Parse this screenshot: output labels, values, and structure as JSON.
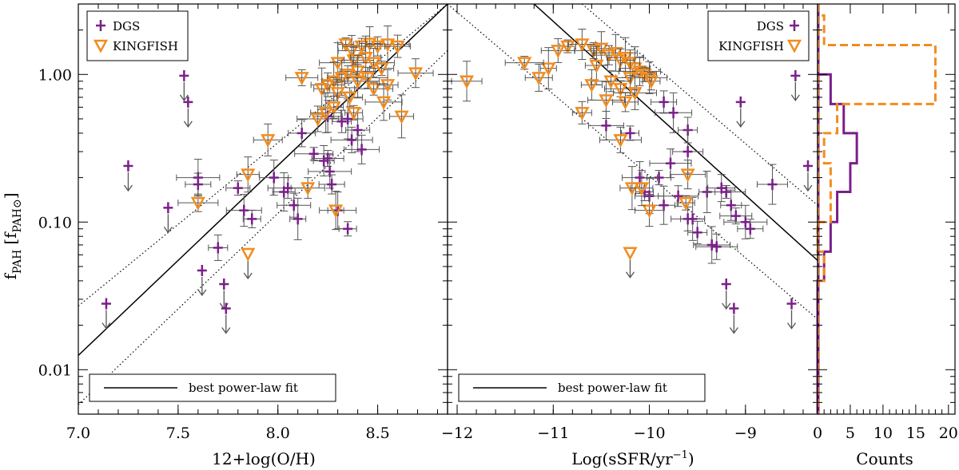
{
  "colors": {
    "dgs": "#7a1f8a",
    "kingfish": "#f28c1e",
    "errorbar": "#555555",
    "fit": "#000000"
  },
  "chart_data": [
    {
      "type": "scatter",
      "panel": "left",
      "xlabel": "12+log(O/H)",
      "ylabel": "f_PAH [f_PAH⊙]",
      "ylabel_main": "f",
      "ylabel_sub": "PAH",
      "ylabel_bracket_open": "[f",
      "ylabel_bracket_sub": "PAH⊙",
      "ylabel_bracket_close": "]",
      "xlim": [
        7.0,
        8.85
      ],
      "ylim": [
        0.005,
        3.0
      ],
      "yscale": "log",
      "xticks": [
        "7.0",
        "7.5",
        "8.0",
        "8.5"
      ],
      "yticks": [
        "0.01",
        "0.10",
        "1.00"
      ],
      "legend": {
        "position": "top-left",
        "entries": [
          "DGS",
          "KINGFISH"
        ]
      },
      "fit_label": "best power-law fit",
      "fit_line": {
        "x": [
          7.0,
          8.85
        ],
        "y": [
          0.0125,
          3.0
        ]
      },
      "fit_scatter_lines": [
        {
          "x": [
            7.0,
            8.85
          ],
          "y": [
            0.027,
            3.0
          ]
        },
        {
          "x": [
            7.0,
            8.85
          ],
          "y": [
            0.0058,
            1.45
          ]
        }
      ],
      "series": [
        {
          "name": "DGS",
          "marker": "plus",
          "points": [
            [
              7.53,
              0.98
            ],
            [
              7.55,
              0.65
            ],
            [
              7.25,
              0.24
            ],
            [
              7.14,
              0.028
            ],
            [
              7.45,
              0.125
            ],
            [
              7.6,
              0.2
            ],
            [
              7.6,
              0.18
            ],
            [
              7.62,
              0.047
            ],
            [
              7.7,
              0.067
            ],
            [
              7.73,
              0.038
            ],
            [
              7.74,
              0.026
            ],
            [
              7.8,
              0.17
            ],
            [
              7.83,
              0.12
            ],
            [
              7.87,
              0.105
            ],
            [
              7.98,
              0.2
            ],
            [
              8.05,
              0.17
            ],
            [
              8.03,
              0.16
            ],
            [
              8.08,
              0.13
            ],
            [
              8.1,
              0.105
            ],
            [
              8.12,
              0.4
            ],
            [
              8.18,
              0.29
            ],
            [
              8.23,
              0.26
            ],
            [
              8.25,
              0.27
            ],
            [
              8.26,
              0.22
            ],
            [
              8.27,
              0.18
            ],
            [
              8.3,
              0.12
            ],
            [
              8.32,
              0.48
            ],
            [
              8.35,
              0.5
            ],
            [
              8.37,
              0.36
            ],
            [
              8.4,
              0.42
            ],
            [
              8.42,
              0.31
            ],
            [
              8.35,
              0.09
            ],
            [
              8.25,
              0.52
            ]
          ],
          "upper_limit_indices": [
            0,
            1,
            2,
            3,
            4,
            7,
            9,
            10
          ]
        },
        {
          "name": "KINGFISH",
          "marker": "down-triangle",
          "points": [
            [
              8.34,
              1.6
            ],
            [
              8.37,
              1.45
            ],
            [
              8.42,
              1.55
            ],
            [
              8.46,
              1.62
            ],
            [
              8.5,
              1.55
            ],
            [
              8.55,
              1.6
            ],
            [
              8.6,
              1.55
            ],
            [
              8.3,
              1.2
            ],
            [
              8.38,
              1.25
            ],
            [
              8.44,
              1.3
            ],
            [
              8.48,
              1.2
            ],
            [
              8.52,
              1.1
            ],
            [
              8.4,
              1.05
            ],
            [
              8.35,
              1.0
            ],
            [
              8.32,
              0.95
            ],
            [
              8.45,
              0.95
            ],
            [
              8.28,
              0.9
            ],
            [
              8.25,
              0.85
            ],
            [
              8.22,
              0.8
            ],
            [
              8.3,
              0.75
            ],
            [
              8.48,
              0.8
            ],
            [
              8.55,
              0.85
            ],
            [
              8.12,
              0.95
            ],
            [
              8.4,
              0.9
            ],
            [
              8.36,
              0.7
            ],
            [
              8.53,
              0.65
            ],
            [
              8.28,
              0.6
            ],
            [
              8.24,
              0.55
            ],
            [
              8.2,
              0.5
            ],
            [
              8.62,
              0.52
            ],
            [
              8.69,
              1.02
            ],
            [
              8.38,
              0.55
            ],
            [
              7.95,
              0.36
            ],
            [
              7.6,
              0.135
            ],
            [
              7.85,
              0.21
            ],
            [
              8.15,
              0.17
            ],
            [
              8.29,
              0.12
            ],
            [
              7.85,
              0.061
            ]
          ],
          "upper_limit_indices": [
            37
          ]
        }
      ]
    },
    {
      "type": "scatter",
      "panel": "middle",
      "xlabel": "Log(sSFR/yr⁻¹)",
      "xlabel_main": "Log(sSFR/yr",
      "xlabel_sup": "−1",
      "xlabel_close": ")",
      "xlim": [
        -12.1,
        -8.25
      ],
      "ylim": [
        0.005,
        3.0
      ],
      "yscale": "log",
      "xticks": [
        "−12",
        "−11",
        "−10",
        "−9"
      ],
      "legend": {
        "position": "top-right",
        "entries": [
          "DGS",
          "KINGFISH"
        ]
      },
      "fit_label": "best power-law fit",
      "fit_line": {
        "x": [
          -11.2,
          -8.25
        ],
        "y": [
          3.0,
          0.055
        ]
      },
      "fit_scatter_lines": [
        {
          "x": [
            -10.7,
            -8.25
          ],
          "y": [
            3.0,
            0.13
          ]
        },
        {
          "x": [
            -12.1,
            -8.25
          ],
          "y": [
            3.0,
            0.022
          ]
        }
      ],
      "series": [
        {
          "name": "DGS",
          "marker": "plus",
          "points": [
            [
              -8.48,
              0.98
            ],
            [
              -9.05,
              0.65
            ],
            [
              -8.35,
              0.24
            ],
            [
              -9.2,
              0.038
            ],
            [
              -9.12,
              0.026
            ],
            [
              -8.52,
              0.028
            ],
            [
              -9.85,
              0.65
            ],
            [
              -9.75,
              0.55
            ],
            [
              -9.6,
              0.42
            ],
            [
              -9.6,
              0.3
            ],
            [
              -9.78,
              0.25
            ],
            [
              -9.9,
              0.2
            ],
            [
              -10.1,
              0.2
            ],
            [
              -10.05,
              0.16
            ],
            [
              -10.0,
              0.15
            ],
            [
              -9.7,
              0.15
            ],
            [
              -9.85,
              0.13
            ],
            [
              -9.6,
              0.105
            ],
            [
              -9.4,
              0.16
            ],
            [
              -9.25,
              0.17
            ],
            [
              -9.2,
              0.16
            ],
            [
              -9.15,
              0.13
            ],
            [
              -9.1,
              0.11
            ],
            [
              -9.0,
              0.1
            ],
            [
              -8.95,
              0.09
            ],
            [
              -9.35,
              0.07
            ],
            [
              -9.5,
              0.085
            ],
            [
              -8.72,
              0.18
            ],
            [
              -9.3,
              0.068
            ],
            [
              -9.55,
              0.105
            ],
            [
              -10.45,
              0.45
            ],
            [
              -10.2,
              0.4
            ]
          ],
          "upper_limit_indices": [
            0,
            1,
            2,
            3,
            4,
            5
          ]
        },
        {
          "name": "KINGFISH",
          "marker": "down-triangle",
          "points": [
            [
              -10.85,
              1.55
            ],
            [
              -10.7,
              1.6
            ],
            [
              -10.58,
              1.45
            ],
            [
              -10.5,
              1.5
            ],
            [
              -10.42,
              1.35
            ],
            [
              -10.35,
              1.4
            ],
            [
              -10.3,
              1.25
            ],
            [
              -10.25,
              1.3
            ],
            [
              -10.2,
              1.2
            ],
            [
              -10.15,
              1.1
            ],
            [
              -10.1,
              1.05
            ],
            [
              -10.05,
              1.0
            ],
            [
              -10.0,
              0.95
            ],
            [
              -9.98,
              0.9
            ],
            [
              -10.2,
              0.95
            ],
            [
              -10.4,
              0.9
            ],
            [
              -10.55,
              1.15
            ],
            [
              -10.95,
              1.45
            ],
            [
              -11.05,
              1.1
            ],
            [
              -11.15,
              0.95
            ],
            [
              -11.3,
              1.2
            ],
            [
              -10.6,
              0.85
            ],
            [
              -10.3,
              0.8
            ],
            [
              -10.15,
              0.75
            ],
            [
              -10.25,
              0.65
            ],
            [
              -10.45,
              0.67
            ],
            [
              -10.7,
              0.55
            ],
            [
              -11.9,
              0.9
            ],
            [
              -10.3,
              0.36
            ],
            [
              -10.18,
              0.17
            ],
            [
              -9.6,
              0.21
            ],
            [
              -9.62,
              0.135
            ],
            [
              -10.0,
              0.12
            ],
            [
              -10.2,
              0.062
            ],
            [
              -10.08,
              0.17
            ]
          ],
          "upper_limit_indices": [
            33
          ]
        }
      ]
    },
    {
      "type": "histogram",
      "panel": "right",
      "xlabel": "Counts",
      "xlim": [
        0,
        21
      ],
      "xticks": [
        "0",
        "5",
        "10",
        "15",
        "20"
      ],
      "orientation": "horizontal",
      "series": [
        {
          "name": "DGS",
          "style": "solid",
          "bins": [
            {
              "y": [
                0.005,
                0.0052
              ],
              "count": 0
            },
            {
              "y": [
                0.025,
                0.04
              ],
              "count": 0
            },
            {
              "y": [
                0.04,
                0.063
              ],
              "count": 1
            },
            {
              "y": [
                0.063,
                0.1
              ],
              "count": 2
            },
            {
              "y": [
                0.1,
                0.16
              ],
              "count": 3
            },
            {
              "y": [
                0.16,
                0.25
              ],
              "count": 5
            },
            {
              "y": [
                0.25,
                0.4
              ],
              "count": 6
            },
            {
              "y": [
                0.4,
                0.63
              ],
              "count": 4
            },
            {
              "y": [
                0.63,
                1.0
              ],
              "count": 2
            }
          ]
        },
        {
          "name": "KINGFISH",
          "style": "dashed",
          "bins": [
            {
              "y": [
                0.04,
                0.063
              ],
              "count": 1
            },
            {
              "y": [
                0.063,
                0.1
              ],
              "count": 0
            },
            {
              "y": [
                0.1,
                0.16
              ],
              "count": 2
            },
            {
              "y": [
                0.16,
                0.25
              ],
              "count": 2
            },
            {
              "y": [
                0.25,
                0.4
              ],
              "count": 1
            },
            {
              "y": [
                0.4,
                0.63
              ],
              "count": 3
            },
            {
              "y": [
                0.63,
                1.58
              ],
              "count": 18
            },
            {
              "y": [
                1.58,
                2.51
              ],
              "count": 1
            }
          ]
        }
      ]
    }
  ]
}
